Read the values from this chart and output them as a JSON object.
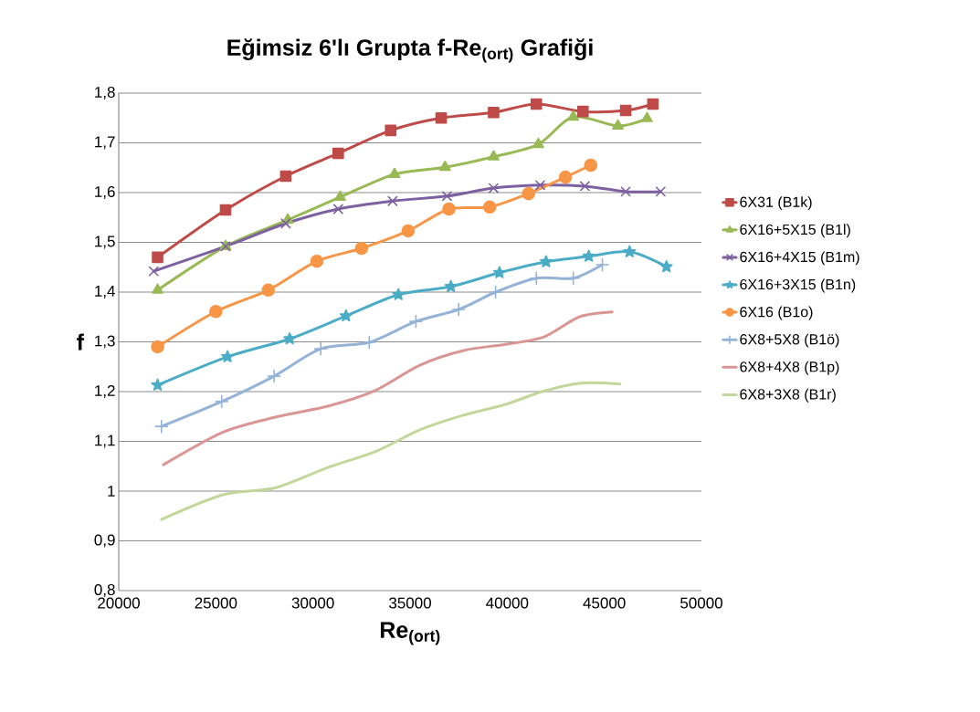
{
  "chart_data": {
    "type": "line",
    "title": "Eğimsiz 6'lı Grupta f-Re$_{(ort)}$ Grafiği",
    "xlabel": "Re$_{(ort)}$",
    "ylabel": "f",
    "xlim": [
      20000,
      50000
    ],
    "xticks": [
      20000,
      25000,
      30000,
      35000,
      40000,
      45000,
      50000
    ],
    "ylim": [
      0.8,
      1.8
    ],
    "yticks": [
      {
        "value": 0.8,
        "label": "0,8"
      },
      {
        "value": 0.9,
        "label": "0,9"
      },
      1,
      {
        "value": 1.1,
        "label": "1,1"
      },
      {
        "value": 1.2,
        "label": "1,2"
      },
      {
        "value": 1.3,
        "label": "1,3"
      },
      {
        "value": 1.4,
        "label": "1,4"
      },
      {
        "value": 1.5,
        "label": "1,5"
      },
      {
        "value": 1.6,
        "label": "1,6"
      },
      {
        "value": 1.7,
        "label": "1,7"
      },
      {
        "value": 1.8,
        "label": "1,8"
      }
    ],
    "grid": "y",
    "legend": "right",
    "line_style": "solid",
    "series": [
      {
        "name": "6X31 (B1k)",
        "color": "#be4b48",
        "marker": "square",
        "x": [
          22000,
          25500,
          28600,
          31300,
          34000,
          36600,
          39300,
          41500,
          43900,
          46100,
          47500
        ],
        "values": [
          1.47,
          1.565,
          1.633,
          1.679,
          1.725,
          1.75,
          1.761,
          1.778,
          1.763,
          1.765,
          1.778
        ]
      },
      {
        "name": "6X16+5X15 (B1l)",
        "color": "#98b954",
        "marker": "triangle",
        "x": [
          22000,
          25500,
          28700,
          31400,
          34200,
          36800,
          39300,
          41600,
          43400,
          45700,
          47200
        ],
        "values": [
          1.404,
          1.492,
          1.545,
          1.591,
          1.637,
          1.651,
          1.672,
          1.697,
          1.752,
          1.734,
          1.749
        ]
      },
      {
        "name": "6X16+4X15 (B1m)",
        "color": "#7d60a0",
        "marker": "cross",
        "x": [
          21800,
          25500,
          28600,
          31300,
          34100,
          36900,
          39300,
          41700,
          44000,
          46100,
          47900
        ],
        "values": [
          1.442,
          1.492,
          1.538,
          1.567,
          1.583,
          1.593,
          1.609,
          1.615,
          1.613,
          1.602,
          1.602
        ]
      },
      {
        "name": "6X16+3X15 (B1n)",
        "color": "#4bacc6",
        "marker": "star",
        "x": [
          22000,
          25600,
          28800,
          31700,
          34400,
          37100,
          39600,
          42000,
          44200,
          46300,
          48200
        ],
        "values": [
          1.213,
          1.27,
          1.306,
          1.352,
          1.395,
          1.411,
          1.439,
          1.461,
          1.472,
          1.481,
          1.451
        ]
      },
      {
        "name": "6X16 (B1o)",
        "color": "#f79646",
        "marker": "circle",
        "x": [
          22000,
          25000,
          27700,
          30200,
          32500,
          34900,
          37000,
          39100,
          41100,
          43000,
          44300
        ],
        "values": [
          1.29,
          1.361,
          1.404,
          1.462,
          1.488,
          1.523,
          1.567,
          1.571,
          1.598,
          1.631,
          1.655
        ]
      },
      {
        "name": "6X8+5X8 (B1ö)",
        "color": "#95b3d7",
        "marker": "plus",
        "x": [
          22200,
          25300,
          28000,
          30400,
          32900,
          35300,
          37500,
          39400,
          41500,
          43400,
          44900
        ],
        "values": [
          1.13,
          1.18,
          1.231,
          1.286,
          1.299,
          1.341,
          1.365,
          1.4,
          1.428,
          1.428,
          1.455
        ]
      },
      {
        "name": "6X8+4X8 (B1p)",
        "color": "#da9694",
        "marker": "none",
        "x": [
          22300,
          25400,
          28100,
          30800,
          33200,
          35500,
          37800,
          39900,
          41900,
          43700,
          45400
        ],
        "values": [
          1.053,
          1.119,
          1.149,
          1.171,
          1.202,
          1.253,
          1.283,
          1.295,
          1.31,
          1.35,
          1.36
        ]
      },
      {
        "name": "6X8+3X8 (B1r)",
        "color": "#c4d79b",
        "marker": "none",
        "x": [
          22200,
          25400,
          28100,
          30800,
          33200,
          35500,
          37700,
          39900,
          41800,
          43800,
          45800
        ],
        "values": [
          0.943,
          0.993,
          1.007,
          1.048,
          1.079,
          1.123,
          1.152,
          1.174,
          1.2,
          1.217,
          1.215
        ]
      }
    ]
  }
}
